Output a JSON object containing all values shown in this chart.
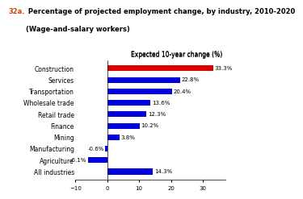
{
  "title_prefix": "32a.",
  "title_main": " Percentage of projected employment change, by industry, 2010-2020",
  "title_sub": "(Wage-and-salary workers)",
  "xlabel": "Expected 10-year change (%)",
  "categories": [
    "All industries",
    "Agriculture",
    "Manufacturing",
    "Mining",
    "Finance",
    "Retail trade",
    "Wholesale trade",
    "Transportation",
    "Services",
    "Construction"
  ],
  "values": [
    14.3,
    -6.1,
    -0.6,
    3.8,
    10.2,
    12.3,
    13.6,
    20.4,
    22.8,
    33.3
  ],
  "bar_colors": [
    "#0000dd",
    "#0000dd",
    "#0000dd",
    "#0000dd",
    "#0000dd",
    "#0000dd",
    "#0000dd",
    "#0000dd",
    "#0000dd",
    "#dd0000"
  ],
  "value_labels": [
    "14.3%",
    "-6.1%",
    "-0.6%",
    "3.8%",
    "10.2%",
    "12.3%",
    "13.6%",
    "20.4%",
    "22.8%",
    "33.3%"
  ],
  "xlim": [
    -10,
    37
  ],
  "background_color": "#ffffff",
  "title_color_prefix": "#cc4400",
  "title_color_main": "#000000",
  "bar_height": 0.5
}
